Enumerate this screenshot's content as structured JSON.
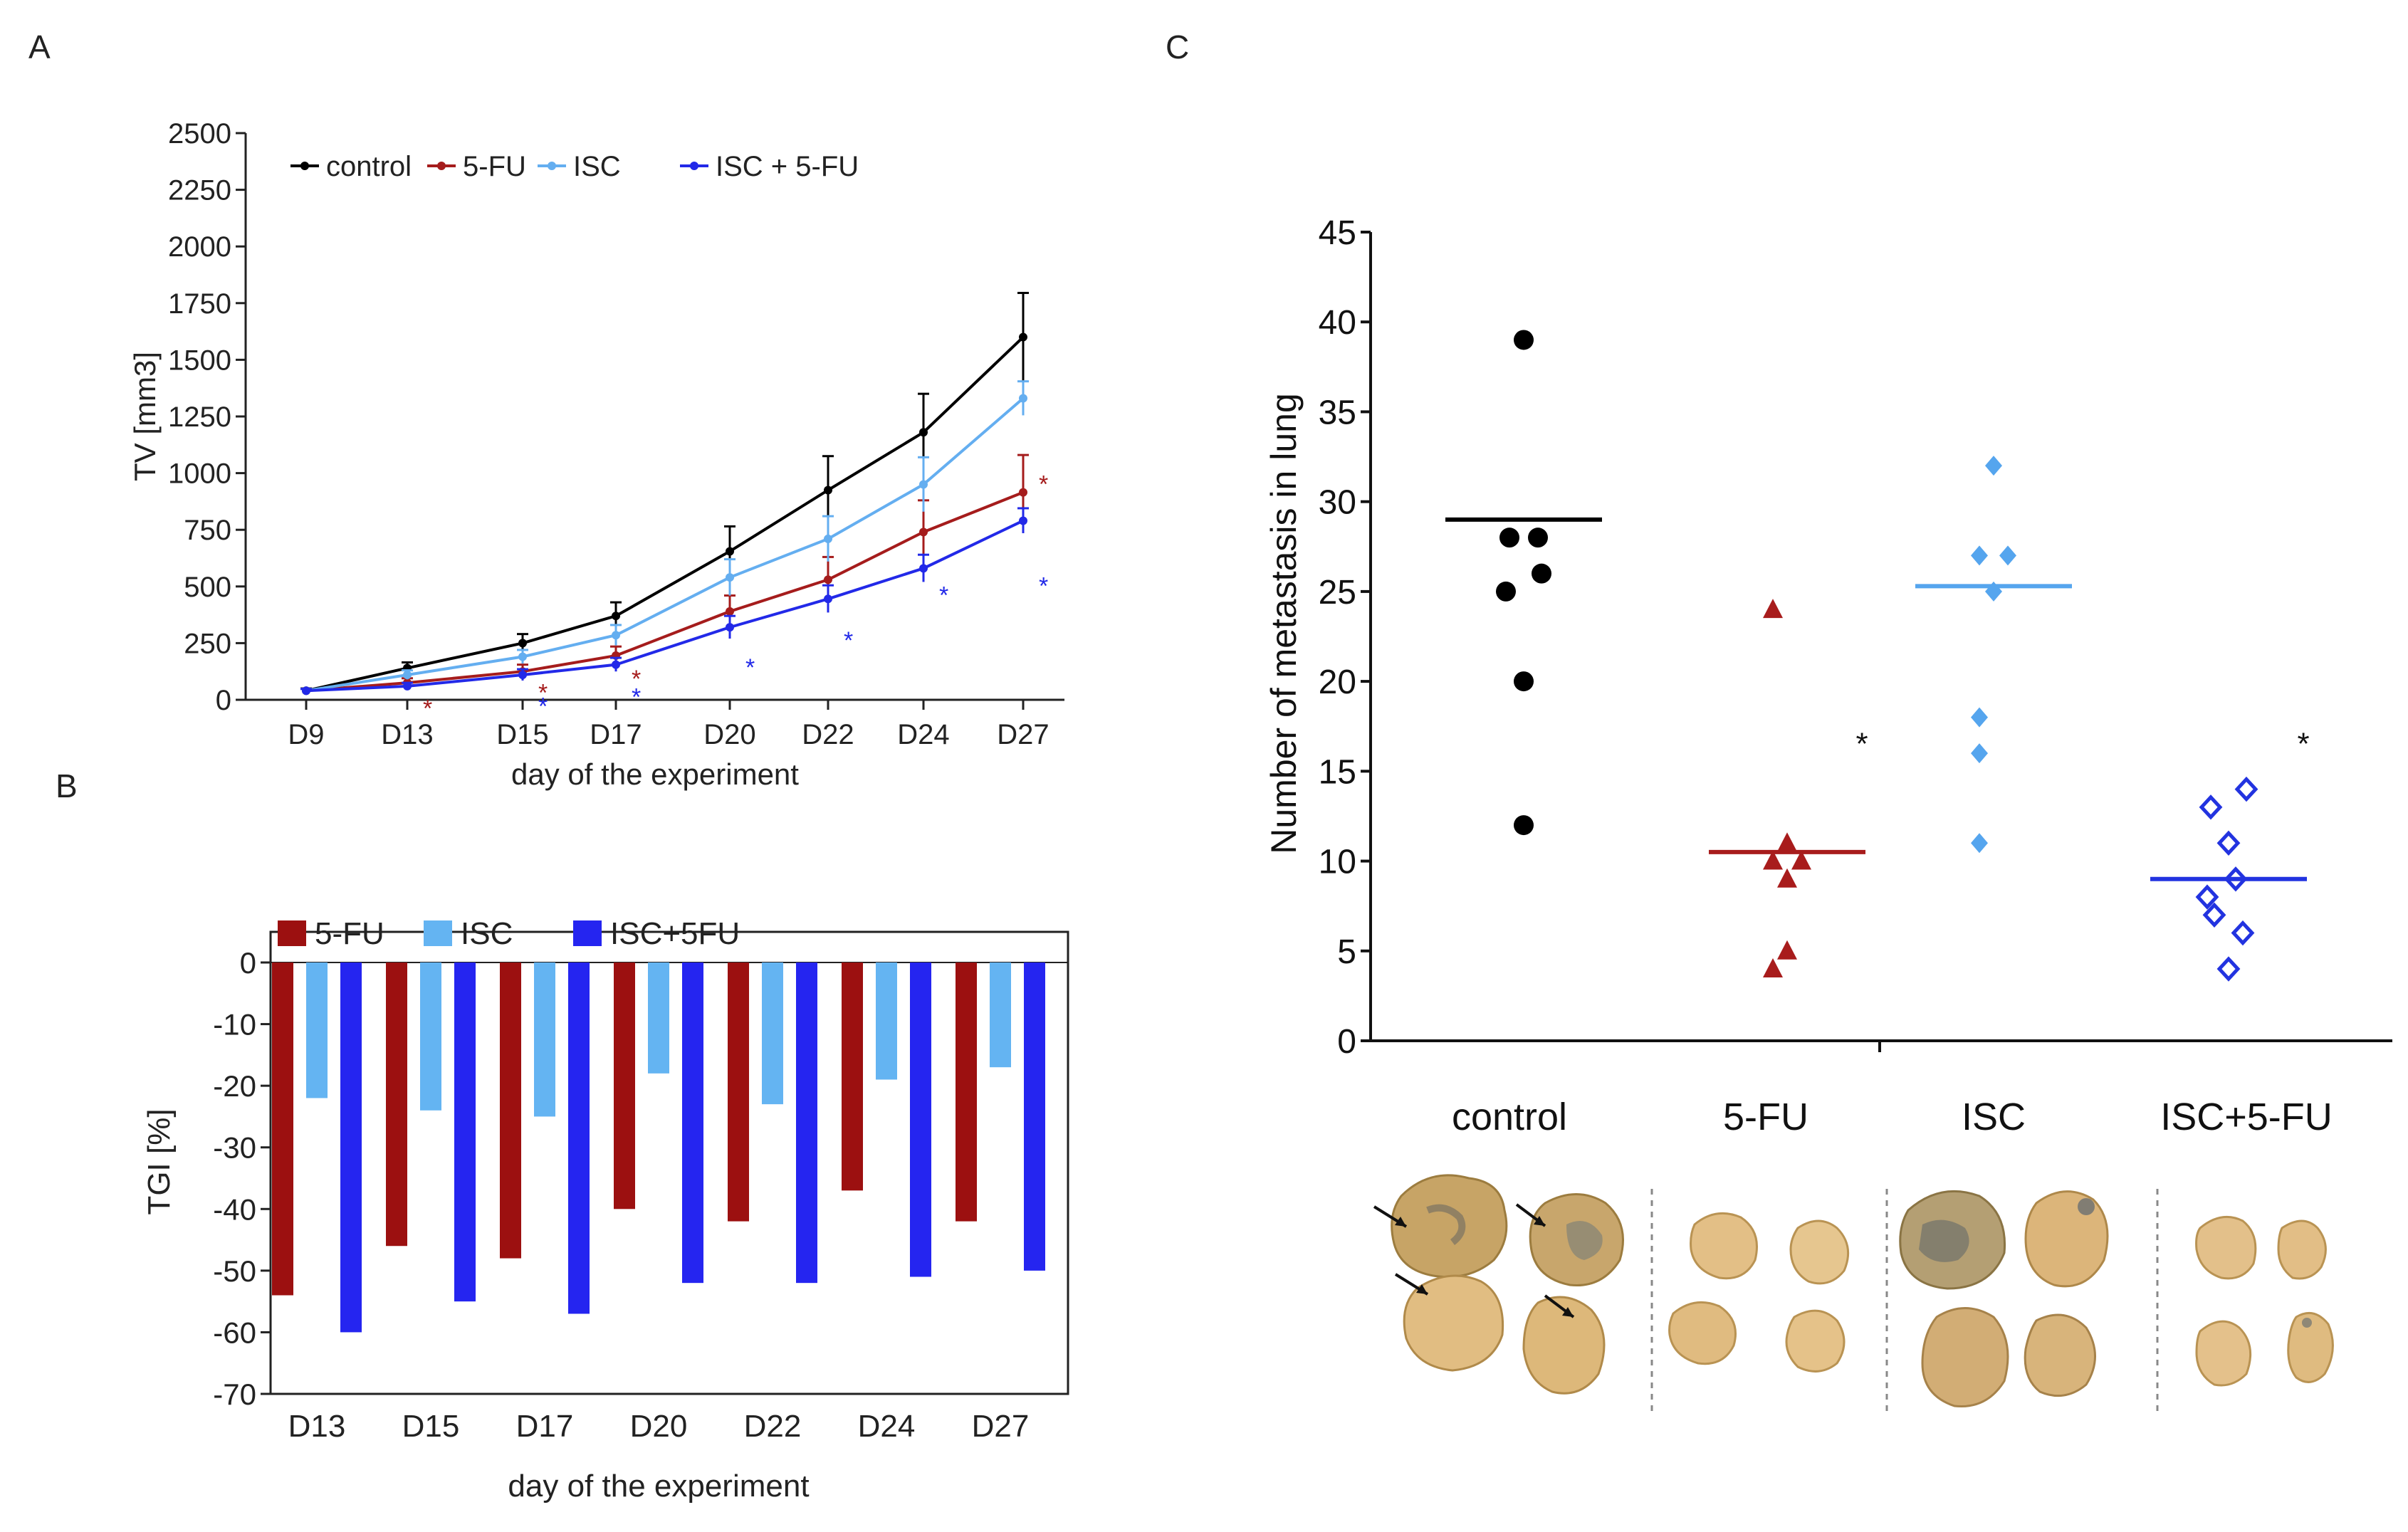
{
  "panels": {
    "a": "A",
    "b": "B",
    "c": "C"
  },
  "chart_data": [
    {
      "type": "line",
      "panel": "A",
      "title": "",
      "xlabel": "day of the experiment",
      "ylabel": "TV [mm3]",
      "categories": [
        "D9",
        "D13",
        "D15",
        "D17",
        "D20",
        "D22",
        "D24",
        "D27"
      ],
      "ylim": [
        0,
        2500
      ],
      "yticks": [
        0,
        250,
        500,
        750,
        1000,
        1250,
        1500,
        1750,
        2000,
        2250,
        2500
      ],
      "legend": "top-left",
      "series": [
        {
          "name": "control",
          "color": "#000000",
          "values": [
            40,
            140,
            250,
            370,
            655,
            925,
            1180,
            1600
          ],
          "errors": [
            10,
            25,
            40,
            60,
            110,
            150,
            170,
            195
          ]
        },
        {
          "name": "5-FU",
          "color": "#a51c1c",
          "values": [
            40,
            75,
            125,
            195,
            390,
            530,
            740,
            915
          ],
          "errors": [
            8,
            20,
            30,
            40,
            70,
            100,
            140,
            165
          ]
        },
        {
          "name": "ISC",
          "color": "#64aef0",
          "values": [
            40,
            110,
            190,
            285,
            540,
            710,
            950,
            1330
          ],
          "errors": [
            8,
            20,
            30,
            45,
            80,
            100,
            120,
            75
          ]
        },
        {
          "name": "ISC + 5-FU",
          "color": "#2229e8",
          "values": [
            40,
            60,
            110,
            155,
            320,
            445,
            580,
            790
          ],
          "errors": [
            8,
            15,
            25,
            30,
            50,
            60,
            60,
            55
          ]
        }
      ],
      "annotations": [
        {
          "text": "*",
          "category": "D13",
          "series": "5-FU",
          "value": -30
        },
        {
          "text": "*",
          "category": "D15",
          "series": "5-FU",
          "value": 40
        },
        {
          "text": "*",
          "category": "D15",
          "series": "ISC + 5-FU",
          "value": -20
        },
        {
          "text": "*",
          "category": "D17",
          "series": "5-FU",
          "value": 100
        },
        {
          "text": "*",
          "category": "D17",
          "series": "ISC + 5-FU",
          "value": 20
        },
        {
          "text": "*",
          "category": "D20",
          "series": "ISC + 5-FU",
          "value": 150
        },
        {
          "text": "*",
          "category": "D22",
          "series": "ISC + 5-FU",
          "value": 270
        },
        {
          "text": "*",
          "category": "D24",
          "series": "ISC + 5-FU",
          "value": 470
        },
        {
          "text": "*",
          "category": "D27",
          "series": "5-FU",
          "value": 960
        },
        {
          "text": "*",
          "category": "D27",
          "series": "ISC + 5-FU",
          "value": 510
        }
      ]
    },
    {
      "type": "bar",
      "panel": "B",
      "title": "",
      "xlabel": "day of the experiment",
      "ylabel": "TGI [%]",
      "categories": [
        "D13",
        "D15",
        "D17",
        "D20",
        "D22",
        "D24",
        "D27"
      ],
      "ylim": [
        -70,
        0
      ],
      "yticks": [
        0,
        -10,
        -20,
        -30,
        -40,
        -50,
        -60,
        -70
      ],
      "legend": "top-left",
      "series": [
        {
          "name": "5-FU",
          "color": "#9c1010",
          "values": [
            -54,
            -46,
            -48,
            -40,
            -42,
            -37,
            -42
          ]
        },
        {
          "name": "ISC",
          "color": "#64b4f2",
          "values": [
            -22,
            -24,
            -25,
            -18,
            -23,
            -19,
            -17
          ]
        },
        {
          "name": "ISC+5FU",
          "color": "#2525f0",
          "values": [
            -60,
            -55,
            -57,
            -52,
            -52,
            -51,
            -50
          ]
        }
      ]
    },
    {
      "type": "scatter",
      "panel": "C",
      "title": "",
      "xlabel": "",
      "ylabel": "Number of metastasis in lung",
      "categories": [
        "control",
        "5-FU",
        "ISC",
        "ISC+5-FU"
      ],
      "ylim": [
        0,
        45
      ],
      "yticks": [
        0,
        5,
        10,
        15,
        20,
        25,
        30,
        35,
        40,
        45
      ],
      "groups": [
        {
          "name": "control",
          "color": "#000000",
          "marker": "circle",
          "mean": 29,
          "points": [
            {
              "o": 0,
              "v": 39
            },
            {
              "o": -0.2,
              "v": 28
            },
            {
              "o": 0.2,
              "v": 28
            },
            {
              "o": -0.25,
              "v": 25
            },
            {
              "o": 0.25,
              "v": 26
            },
            {
              "o": 0,
              "v": 20
            },
            {
              "o": 0,
              "v": 12
            }
          ]
        },
        {
          "name": "5-FU",
          "color": "#a81c1c",
          "marker": "triangle",
          "mean": 10.5,
          "points": [
            {
              "o": -0.2,
              "v": 24
            },
            {
              "o": -0.2,
              "v": 10
            },
            {
              "o": 0,
              "v": 11
            },
            {
              "o": 0.2,
              "v": 10
            },
            {
              "o": 0,
              "v": 9
            },
            {
              "o": -0.2,
              "v": 4
            },
            {
              "o": 0,
              "v": 5
            }
          ]
        },
        {
          "name": "ISC",
          "color": "#55a5ee",
          "marker": "diamond",
          "mean": 25.3,
          "points": [
            {
              "o": 0,
              "v": 32
            },
            {
              "o": -0.2,
              "v": 27
            },
            {
              "o": 0.2,
              "v": 27
            },
            {
              "o": 0,
              "v": 25
            },
            {
              "o": -0.2,
              "v": 18
            },
            {
              "o": -0.2,
              "v": 16
            },
            {
              "o": -0.2,
              "v": 11
            }
          ]
        },
        {
          "name": "ISC+5-FU",
          "color": "#2233e0",
          "marker": "open-diamond",
          "mean": 9,
          "points": [
            {
              "o": -0.25,
              "v": 13
            },
            {
              "o": 0.25,
              "v": 14
            },
            {
              "o": 0,
              "v": 11
            },
            {
              "o": -0.3,
              "v": 8
            },
            {
              "o": 0.1,
              "v": 9
            },
            {
              "o": -0.2,
              "v": 7
            },
            {
              "o": 0.2,
              "v": 6
            },
            {
              "o": 0,
              "v": 4
            }
          ]
        }
      ],
      "annotations": [
        {
          "text": "*",
          "group": "5-FU",
          "value": 16.5
        },
        {
          "text": "*",
          "group": "ISC+5-FU",
          "value": 16.5
        }
      ]
    }
  ],
  "photos": [
    {
      "name": "control",
      "arrows": 4
    },
    {
      "name": "5-FU",
      "arrows": 0
    },
    {
      "name": "ISC",
      "arrows": 0
    },
    {
      "name": "ISC+5-FU",
      "arrows": 0
    }
  ]
}
